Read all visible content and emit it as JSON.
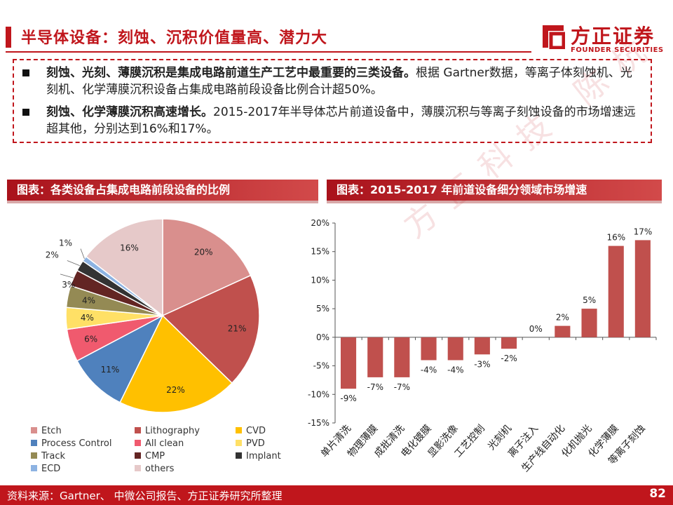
{
  "header": {
    "title": "半导体设备：刻蚀、沉积价值量高、潜力大",
    "logo_cn": "方正证券",
    "logo_en": "FOUNDER SECURITIES"
  },
  "summary": {
    "bullet1_bold": "刻蚀、光刻、薄膜沉积是集成电路前道生产工艺中最重要的三类设备。",
    "bullet1_text": "根据 Gartner数据，等离子体刻蚀机、光刻机、化学薄膜沉积设备占集成电路前段设备比例合计超50%。",
    "bullet2_bold": "刻蚀、化学薄膜沉积高速增长。",
    "bullet2_text": "2015-2017年半导体芯片前道设备中，薄膜沉积与等离子刻蚀设备的市场增速远超其他，分别达到16%和17%。"
  },
  "panels": {
    "left_title": "图表：各类设备占集成电路前段设备的比例",
    "right_title": "图表：2015-2017 年前道设备细分领域市场增速"
  },
  "watermark": "方正科技 陈杭",
  "colors": {
    "brand_red": "#c0161c",
    "bar_red": "#c0504d"
  },
  "chart_data": [
    {
      "type": "pie",
      "categories": [
        "Etch",
        "Lithography",
        "CVD",
        "Process Control",
        "All clean",
        "PVD",
        "Track",
        "CMP",
        "Implant",
        "ECD",
        "others"
      ],
      "values": [
        20,
        21,
        22,
        11,
        6,
        4,
        4,
        3,
        2,
        1,
        16
      ],
      "labels": [
        "20%",
        "21%",
        "22%",
        "11%",
        "6%",
        "4%",
        "4%",
        "3%",
        "2%",
        "1%",
        "16%"
      ],
      "colors": [
        "#d98f8d",
        "#c0504d",
        "#ffc000",
        "#4f81bd",
        "#f05a6e",
        "#ffe066",
        "#948a54",
        "#632523",
        "#333333",
        "#8db3e2",
        "#e6c9c9"
      ],
      "legend_position": "bottom"
    },
    {
      "type": "bar",
      "categories": [
        "单片清洗",
        "物理薄膜",
        "成批清洗",
        "电化镀膜",
        "显影洗像",
        "工艺控制",
        "光刻机",
        "离子注入",
        "生产线自动化",
        "化机抛光",
        "化学薄膜",
        "等离子刻蚀"
      ],
      "values": [
        -9,
        -7,
        -7,
        -4,
        -4,
        -3,
        -2,
        0,
        2,
        5,
        16,
        17
      ],
      "labels": [
        "-9%",
        "-7%",
        "-7%",
        "-4%",
        "-4%",
        "-3%",
        "-2%",
        "0%",
        "2%",
        "5%",
        "16%",
        "17%"
      ],
      "yticks": [
        "20%",
        "15%",
        "10%",
        "5%",
        "0%",
        "-5%",
        "-10%",
        "-15%"
      ],
      "ylim": [
        -15,
        20
      ],
      "ytick_step": 5,
      "grid": false
    }
  ],
  "footer": {
    "source": "资料来源：Gartner、 中微公司报告、方正证券研究所整理",
    "page": "82"
  }
}
